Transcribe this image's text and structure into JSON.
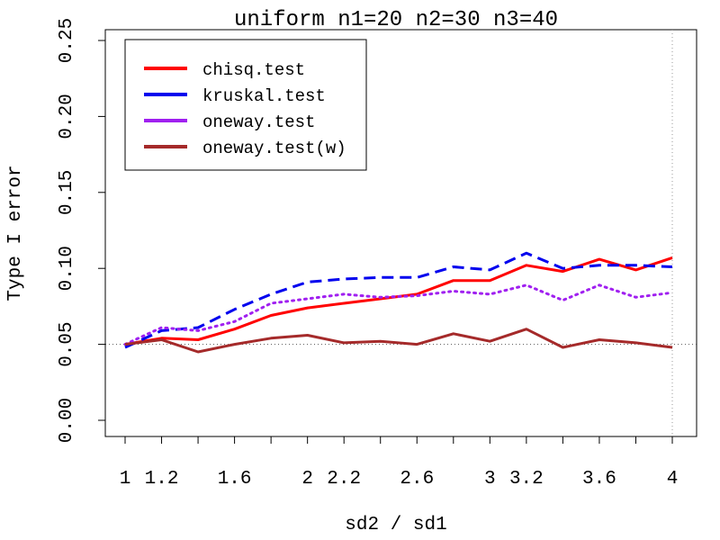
{
  "chart_data": {
    "type": "line",
    "title": "uniform n1=20 n2=30 n3=40",
    "xlabel": "sd2 / sd1",
    "ylabel": "Type I error",
    "xlim": [
      1,
      4
    ],
    "ylim": [
      0,
      0.25
    ],
    "x_ticks": [
      1,
      1.2,
      1.6,
      2,
      2.2,
      2.6,
      3,
      3.2,
      3.6,
      4
    ],
    "x_tick_labels": [
      "1",
      "1.2",
      "1.6",
      "2",
      "2.2",
      "2.6",
      "3",
      "3.2",
      "3.6",
      "4"
    ],
    "y_ticks": [
      0.0,
      0.05,
      0.1,
      0.15,
      0.2,
      0.25
    ],
    "y_tick_labels": [
      "0.00",
      "0.05",
      "0.10",
      "0.15",
      "0.20",
      "0.25"
    ],
    "grid": false,
    "reference_line": 0.05,
    "legend_position": "top-left",
    "x": [
      1,
      1.2,
      1.4,
      1.6,
      1.8,
      2,
      2.2,
      2.4,
      2.6,
      2.8,
      3,
      3.2,
      3.4,
      3.6,
      3.8,
      4
    ],
    "series": [
      {
        "name": "chisq.test",
        "color": "#ff0000",
        "dash": "solid",
        "values": [
          0.05,
          0.054,
          0.053,
          0.06,
          0.069,
          0.074,
          0.077,
          0.08,
          0.083,
          0.092,
          0.092,
          0.102,
          0.098,
          0.106,
          0.099,
          0.107
        ]
      },
      {
        "name": "kruskal.test",
        "color": "#0000ee",
        "dash": "dashed",
        "values": [
          0.048,
          0.059,
          0.061,
          0.073,
          0.083,
          0.091,
          0.093,
          0.094,
          0.094,
          0.101,
          0.099,
          0.11,
          0.1,
          0.102,
          0.102,
          0.101
        ]
      },
      {
        "name": "oneway.test",
        "color": "#a020f0",
        "dash": "dotted",
        "values": [
          0.05,
          0.061,
          0.059,
          0.065,
          0.077,
          0.08,
          0.083,
          0.081,
          0.082,
          0.085,
          0.083,
          0.089,
          0.079,
          0.089,
          0.081,
          0.084
        ]
      },
      {
        "name": "oneway.test(w)",
        "color": "#a52a2a",
        "dash": "solid",
        "values": [
          0.05,
          0.053,
          0.045,
          0.05,
          0.054,
          0.056,
          0.051,
          0.052,
          0.05,
          0.057,
          0.052,
          0.06,
          0.048,
          0.053,
          0.051,
          0.048
        ]
      }
    ]
  }
}
